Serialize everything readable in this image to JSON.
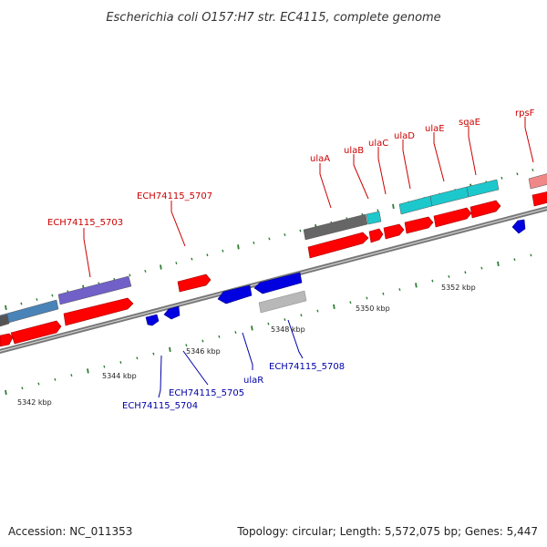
{
  "title": "Escherichia coli O157:H7 str. EC4115, complete genome",
  "footer": {
    "accession": "Accession: NC_011353",
    "summary": "Topology: circular; Length: 5,572,075 bp; Genes: 5,447"
  },
  "colors": {
    "backbone": "#8c8c8c",
    "cds_forward": "#ff0000",
    "cds_reverse": "#0000e0",
    "label_forward": "#cc0000",
    "label_reverse": "#0000aa",
    "tick": "#2e7d32",
    "cog_steelblue": "#4a83b8",
    "cog_purple": "#7060c8",
    "cog_gray": "#666666",
    "cog_cyan": "#1cc8cc",
    "cog_pink": "#f08888",
    "cog_silver": "#b8b8b8"
  },
  "scale_labels": [
    {
      "id": "kbp-5342",
      "text": "5342 kbp"
    },
    {
      "id": "kbp-5344",
      "text": "5344 kbp"
    },
    {
      "id": "kbp-5346",
      "text": "5346 kbp"
    },
    {
      "id": "kbp-5348",
      "text": "5348 kbp"
    },
    {
      "id": "kbp-5350",
      "text": "5350 kbp"
    },
    {
      "id": "kbp-5352",
      "text": "5352 kbp"
    }
  ],
  "gene_labels": {
    "forward": [
      {
        "id": "ech74115-5703",
        "text": "ECH74115_5703"
      },
      {
        "id": "ech74115-5707",
        "text": "ECH74115_5707"
      },
      {
        "id": "ulaa",
        "text": "ulaA"
      },
      {
        "id": "ulab",
        "text": "ulaB"
      },
      {
        "id": "ulac",
        "text": "ulaC"
      },
      {
        "id": "ulad",
        "text": "ulaD"
      },
      {
        "id": "ulae",
        "text": "ulaE"
      },
      {
        "id": "sgae",
        "text": "sgaE"
      },
      {
        "id": "rpsf",
        "text": "rpsF"
      }
    ],
    "reverse": [
      {
        "id": "ech74115-5704",
        "text": "ECH74115_5704"
      },
      {
        "id": "ech74115-5705",
        "text": "ECH74115_5705"
      },
      {
        "id": "ular",
        "text": "ulaR"
      },
      {
        "id": "ech74115-5708",
        "text": "ECH74115_5708"
      }
    ]
  }
}
